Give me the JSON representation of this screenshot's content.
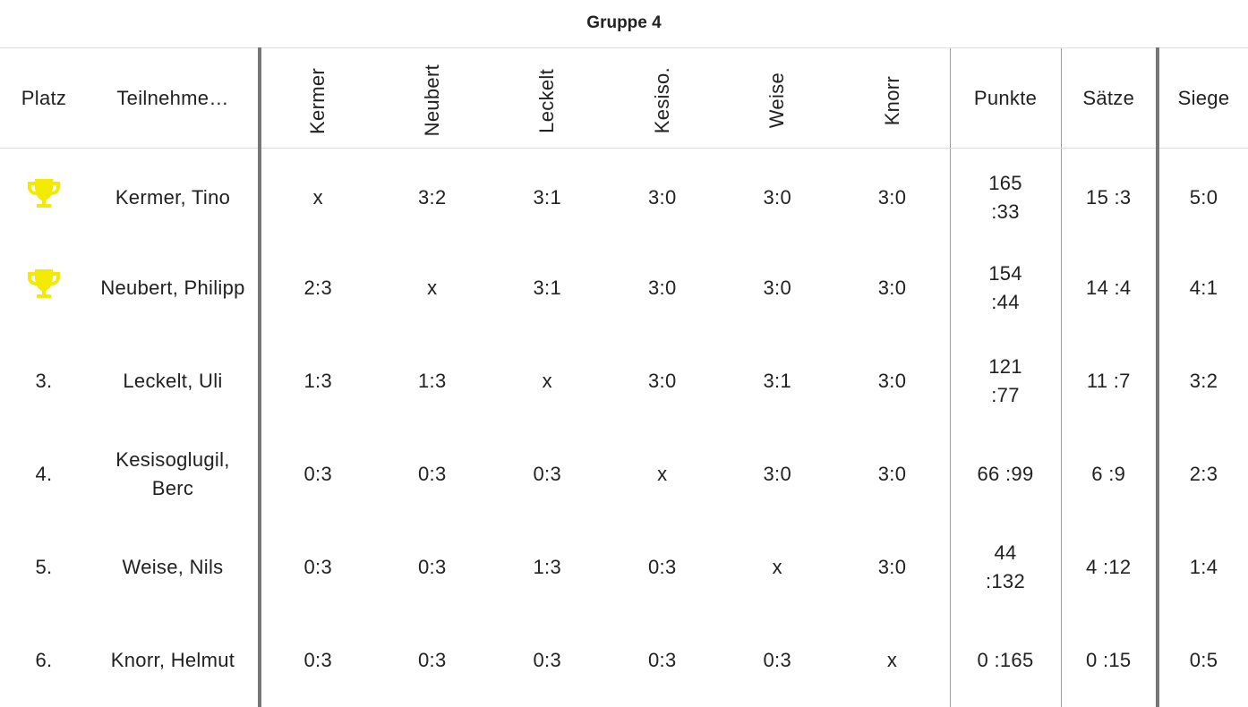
{
  "title": "Gruppe 4",
  "headers": {
    "platz": "Platz",
    "teilnehmer": "Teilnehme…",
    "opponents": [
      "Kermer",
      "Neubert",
      "Leckelt",
      "Kesiso.",
      "Weise",
      "Knorr"
    ],
    "punkte": "Punkte",
    "saetze": "Sätze",
    "siege": "Siege"
  },
  "colors": {
    "trophy": "#f2ea00",
    "divider_thick": "#777777"
  },
  "rows": [
    {
      "platz": "",
      "trophy": true,
      "name": "Kermer, Tino",
      "results": [
        "x",
        "3:2",
        "3:1",
        "3:0",
        "3:0",
        "3:0"
      ],
      "punkte": "165 :33",
      "saetze": "15 :3",
      "siege": "5:0"
    },
    {
      "platz": "",
      "trophy": true,
      "name": "Neubert, Philipp",
      "results": [
        "2:3",
        "x",
        "3:1",
        "3:0",
        "3:0",
        "3:0"
      ],
      "punkte": "154 :44",
      "saetze": "14 :4",
      "siege": "4:1"
    },
    {
      "platz": "3.",
      "trophy": false,
      "name": "Leckelt, Uli",
      "results": [
        "1:3",
        "1:3",
        "x",
        "3:0",
        "3:1",
        "3:0"
      ],
      "punkte": "121 :77",
      "saetze": "11 :7",
      "siege": "3:2"
    },
    {
      "platz": "4.",
      "trophy": false,
      "name": "Kesisoglugil, Berc",
      "results": [
        "0:3",
        "0:3",
        "0:3",
        "x",
        "3:0",
        "3:0"
      ],
      "punkte": "66 :99",
      "saetze": "6 :9",
      "siege": "2:3"
    },
    {
      "platz": "5.",
      "trophy": false,
      "name": "Weise, Nils",
      "results": [
        "0:3",
        "0:3",
        "1:3",
        "0:3",
        "x",
        "3:0"
      ],
      "punkte": "44 :132",
      "saetze": "4 :12",
      "siege": "1:4"
    },
    {
      "platz": "6.",
      "trophy": false,
      "name": "Knorr, Helmut",
      "results": [
        "0:3",
        "0:3",
        "0:3",
        "0:3",
        "0:3",
        "x"
      ],
      "punkte": "0 :165",
      "saetze": "0 :15",
      "siege": "0:5"
    }
  ]
}
